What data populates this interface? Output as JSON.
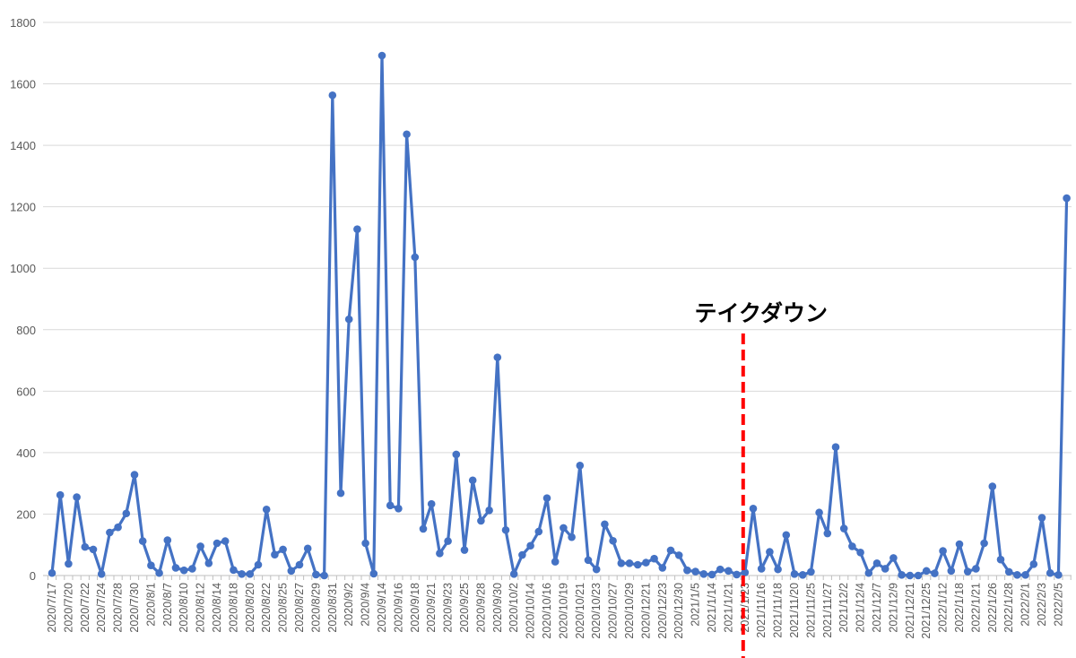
{
  "chart_data": {
    "type": "line",
    "title": "",
    "xlabel": "",
    "ylabel": "",
    "ylim": [
      0,
      1800
    ],
    "y_ticks": [
      "0",
      "200",
      "400",
      "600",
      "800",
      "1000",
      "1200",
      "1400",
      "1600",
      "1800"
    ],
    "grid": "horizontal",
    "legend": "none",
    "x_tick_labels_every": 2,
    "x_tick_labels": [
      "2020/7/17",
      "2020/7/20",
      "2020/7/22",
      "2020/7/24",
      "2020/7/28",
      "2020/7/30",
      "2020/8/1",
      "2020/8/7",
      "2020/8/10",
      "2020/8/12",
      "2020/8/14",
      "2020/8/18",
      "2020/8/20",
      "2020/8/22",
      "2020/8/25",
      "2020/8/27",
      "2020/8/29",
      "2020/8/31",
      "2020/9/2",
      "2020/9/4",
      "2020/9/14",
      "2020/9/16",
      "2020/9/18",
      "2020/9/21",
      "2020/9/23",
      "2020/9/25",
      "2020/9/28",
      "2020/9/30",
      "2020/10/2",
      "2020/10/14",
      "2020/10/16",
      "2020/10/19",
      "2020/10/21",
      "2020/10/23",
      "2020/10/27",
      "2020/10/29",
      "2020/12/21",
      "2020/12/23",
      "2020/12/30",
      "2021/1/5",
      "2021/1/14",
      "2021/1/21",
      "2021/1/23",
      "2021/11/16",
      "2021/11/18",
      "2021/11/20",
      "2021/11/25",
      "2021/11/27",
      "2021/12/2",
      "2021/12/4",
      "2021/12/7",
      "2021/12/9",
      "2021/12/21",
      "2021/12/25",
      "2022/1/12",
      "2022/1/18",
      "2022/1/21",
      "2022/1/26",
      "2022/1/28",
      "2022/2/1",
      "2022/2/3",
      "2022/2/5"
    ],
    "series": [
      {
        "color": "#4472c4",
        "values": [
          8,
          262,
          38,
          255,
          93,
          85,
          5,
          140,
          157,
          202,
          328,
          112,
          33,
          8,
          115,
          25,
          17,
          22,
          95,
          40,
          105,
          112,
          18,
          5,
          5,
          35,
          215,
          68,
          85,
          15,
          35,
          88,
          3,
          0,
          1563,
          268,
          834,
          1127,
          105,
          6,
          1692,
          228,
          218,
          1436,
          1036,
          152,
          233,
          72,
          112,
          394,
          83,
          310,
          178,
          212,
          710,
          148,
          5,
          67,
          97,
          143,
          252,
          45,
          155,
          125,
          358,
          50,
          20,
          167,
          113,
          40,
          40,
          35,
          42,
          55,
          25,
          82,
          66,
          17,
          13,
          5,
          3,
          20,
          15,
          3,
          10,
          218,
          22,
          77,
          20,
          132,
          5,
          2,
          12,
          205,
          137,
          418,
          153,
          95,
          75,
          8,
          40,
          22,
          57,
          2,
          0,
          0,
          15,
          7,
          80,
          15,
          102,
          13,
          22,
          105,
          290,
          52,
          12,
          2,
          2,
          37,
          188,
          8,
          2,
          1228
        ]
      }
    ],
    "annotations": [
      {
        "text": "テイクダウン",
        "at_tick_label": "2021/1/23",
        "line_style": "dashed",
        "color": "#ff0000"
      }
    ]
  }
}
